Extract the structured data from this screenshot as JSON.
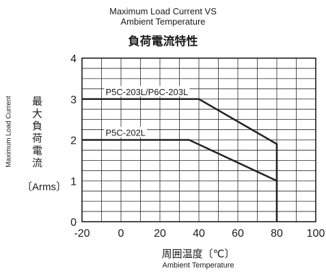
{
  "chart_data": {
    "type": "line",
    "title": "Maximum Load Current VS\nAmbient Temperature",
    "title_lines": [
      "Maximum Load Current VS",
      "Ambient Temperature"
    ],
    "title_jp": "負荷電流特性",
    "xlabel_jp": "周囲温度〔℃〕",
    "xlabel_en": "Ambient Temperature",
    "ylabel_jp": "最大負荷電流",
    "ylabel_en": "Maximum Load Current",
    "y_unit": "〔Arms〕",
    "xlim": [
      -20,
      100
    ],
    "ylim": [
      0,
      4
    ],
    "x_ticks": [
      -20,
      0,
      20,
      40,
      60,
      80,
      100
    ],
    "y_ticks": [
      0,
      1,
      2,
      3,
      4
    ],
    "grid": true,
    "series": [
      {
        "name": "P5C-203L/P6C-203L",
        "x": [
          -20,
          40,
          80,
          80
        ],
        "y": [
          3,
          3,
          1.9,
          0
        ]
      },
      {
        "name": "P5C-202L",
        "x": [
          -20,
          35,
          80
        ],
        "y": [
          2,
          2,
          1
        ]
      }
    ]
  }
}
